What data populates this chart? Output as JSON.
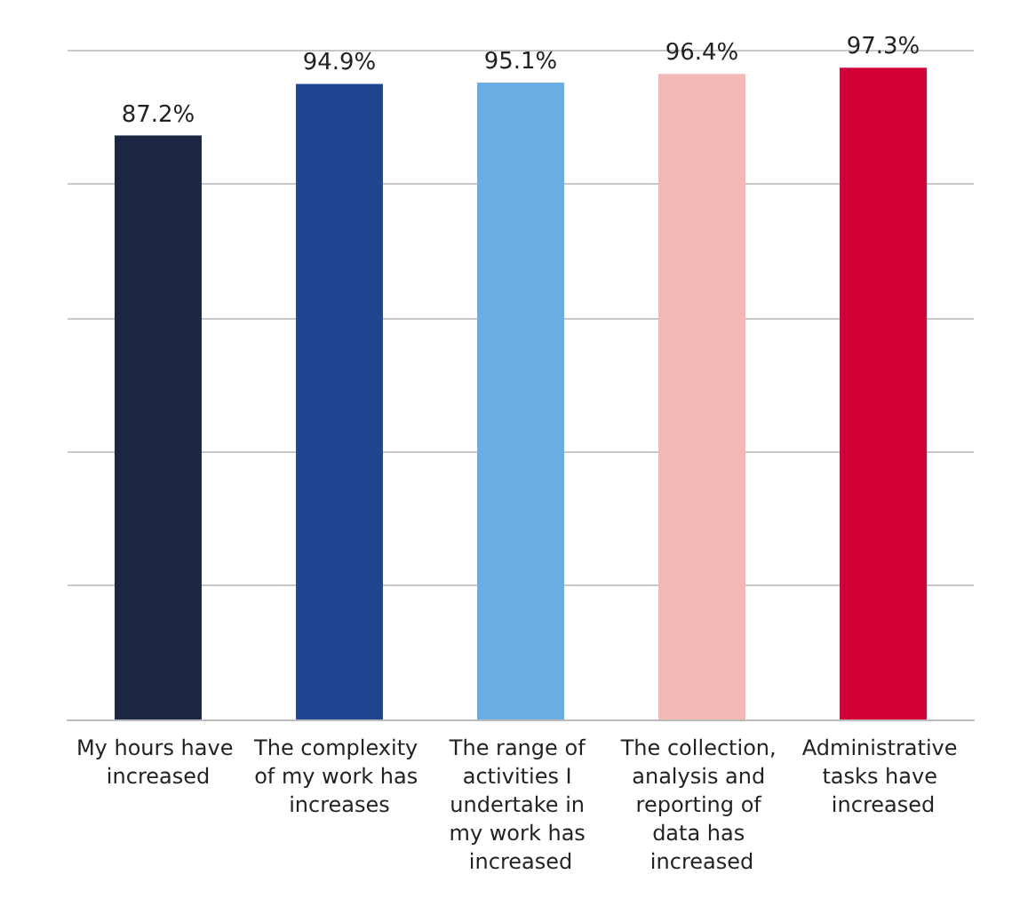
{
  "chart_data": {
    "type": "bar",
    "categories": [
      "My hours have increased",
      "The complexity of my work has increases",
      "The range of activities I undertake in my work has increased",
      "The collection, analysis and reporting of data has increased",
      "Administrative tasks have increased"
    ],
    "values": [
      87.2,
      94.9,
      95.1,
      96.4,
      97.3
    ],
    "colors": [
      "#1c2541",
      "#1f4591",
      "#6aade4",
      "#f4b8b5",
      "#d10036"
    ],
    "value_labels": [
      "87.2%",
      "94.9%",
      "95.1%",
      "96.4%",
      "97.3%"
    ],
    "ylim": [
      0,
      100
    ],
    "yticks": [
      {
        "value": 0,
        "label": null
      },
      {
        "value": 20,
        "label": null
      },
      {
        "value": 40,
        "label": null
      },
      {
        "value": 60,
        "label": null
      },
      {
        "value": 80,
        "label": null
      },
      {
        "value": 100,
        "label": null
      }
    ],
    "grid": "y",
    "tick_labels": "x"
  }
}
